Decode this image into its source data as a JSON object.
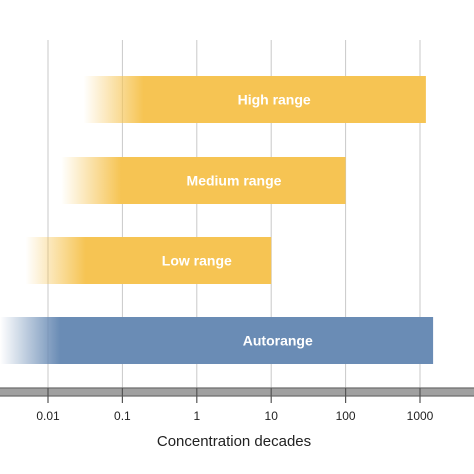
{
  "chart_data": {
    "type": "bar",
    "orientation": "horizontal",
    "xscale": "log",
    "xlabel": "Concentration decades",
    "x_ticks": [
      0.01,
      0.1,
      1,
      10,
      100,
      1000
    ],
    "x_tick_labels": [
      "0.01",
      "0.1",
      "1",
      "10",
      "100",
      "1000"
    ],
    "grid": "vertical",
    "categories": [
      "High range",
      "Medium range",
      "Low range",
      "Autorange"
    ],
    "ranges": [
      {
        "label": "High range",
        "start": 0.03,
        "end": 1200,
        "color": "#f6c453"
      },
      {
        "label": "Medium range",
        "start": 0.015,
        "end": 100,
        "color": "#f6c453"
      },
      {
        "label": "Low range",
        "start": 0.005,
        "end": 10,
        "color": "#f6c453"
      },
      {
        "label": "Autorange",
        "start": 0.001,
        "end": 1500,
        "color": "#6a8cb5"
      }
    ],
    "fade_on_left": true
  }
}
